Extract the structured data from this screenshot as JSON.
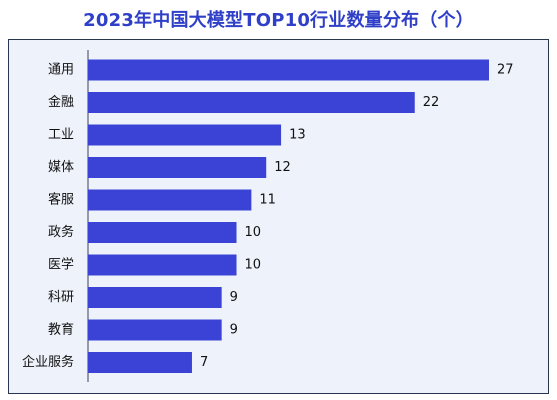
{
  "chart_data": {
    "type": "bar",
    "orientation": "horizontal",
    "title": "2023年中国大模型TOP10行业数量分布（个）",
    "categories": [
      "通用",
      "金融",
      "工业",
      "媒体",
      "客服",
      "政务",
      "医学",
      "科研",
      "教育",
      "企业服务"
    ],
    "values": [
      27,
      22,
      13,
      12,
      11,
      10,
      10,
      9,
      9,
      7
    ],
    "xlabel": "",
    "ylabel": "",
    "xlim": [
      0,
      27
    ],
    "grid": false,
    "legend": "none",
    "bar_color": "#3a43d6",
    "title_color": "#2f3fc8",
    "panel_color": "#eef3fb"
  }
}
